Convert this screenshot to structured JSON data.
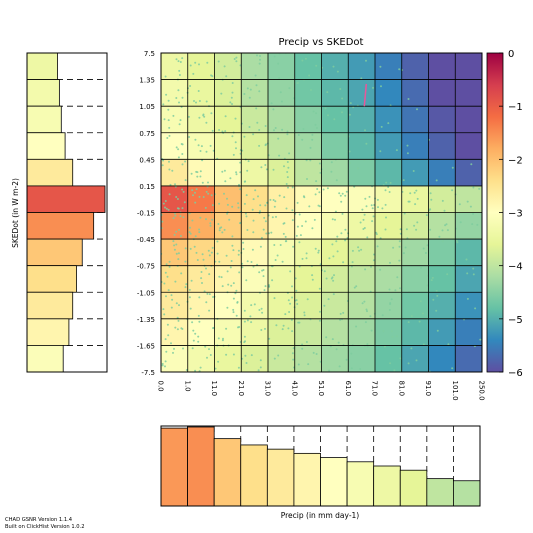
{
  "chart_data": {
    "type": "heatmap",
    "title": "Precip vs SKEDot",
    "xlabel": "Precip (in mm day-1)",
    "ylabel": "SKEDot (in W m-2)",
    "x_edges": [
      "0.0",
      "1.0",
      "11.0",
      "21.0",
      "31.0",
      "41.0",
      "51.0",
      "61.0",
      "71.0",
      "81.0",
      "91.0",
      "101.0",
      "250.0"
    ],
    "y_edges": [
      "7.5",
      "1.35",
      "1.05",
      "0.75",
      "0.45",
      "0.15",
      "-0.15",
      "-0.45",
      "-0.75",
      "-1.05",
      "-1.35",
      "-1.65",
      "-7.5"
    ],
    "colorbar": {
      "ticks": [
        "0",
        "−1",
        "−2",
        "−3",
        "−4",
        "−5",
        "−6"
      ],
      "range": [
        -6,
        0
      ]
    },
    "log_density_grid": [
      [
        -3.4,
        -3.6,
        -3.8,
        -4.2,
        -4.5,
        -4.8,
        -5.0,
        -5.2,
        -5.5,
        -5.8,
        -6.0,
        -6.0
      ],
      [
        -3.3,
        -3.5,
        -3.7,
        -4.1,
        -4.4,
        -4.7,
        -4.9,
        -5.1,
        -5.4,
        -5.7,
        -6.0,
        -6.0
      ],
      [
        -3.2,
        -3.4,
        -3.6,
        -3.9,
        -4.2,
        -4.5,
        -4.8,
        -5.0,
        -5.3,
        -5.6,
        -5.9,
        -6.0
      ],
      [
        -3.0,
        -3.2,
        -3.4,
        -3.7,
        -4.0,
        -4.3,
        -4.6,
        -4.9,
        -5.2,
        -5.5,
        -5.8,
        -6.0
      ],
      [
        -2.6,
        -2.9,
        -3.1,
        -3.4,
        -3.7,
        -4.0,
        -4.3,
        -4.6,
        -4.9,
        -5.2,
        -5.5,
        -5.8
      ],
      [
        -0.9,
        -1.3,
        -2.0,
        -2.4,
        -2.7,
        -2.9,
        -3.0,
        -3.1,
        -3.3,
        -3.5,
        -3.8,
        -4.0
      ],
      [
        -1.5,
        -1.8,
        -2.2,
        -2.5,
        -2.8,
        -3.0,
        -3.2,
        -3.4,
        -3.6,
        -3.8,
        -4.1,
        -4.4
      ],
      [
        -2.1,
        -2.3,
        -2.6,
        -2.9,
        -3.2,
        -3.4,
        -3.6,
        -3.8,
        -4.0,
        -4.3,
        -4.6,
        -4.9
      ],
      [
        -2.4,
        -2.6,
        -2.8,
        -3.1,
        -3.4,
        -3.6,
        -3.8,
        -4.0,
        -4.2,
        -4.5,
        -4.8,
        -5.1
      ],
      [
        -2.6,
        -2.8,
        -3.0,
        -3.3,
        -3.5,
        -3.7,
        -3.9,
        -4.1,
        -4.4,
        -4.7,
        -5.0,
        -5.3
      ],
      [
        -2.8,
        -3.0,
        -3.2,
        -3.4,
        -3.7,
        -3.9,
        -4.1,
        -4.3,
        -4.6,
        -4.9,
        -5.2,
        -5.5
      ],
      [
        -3.1,
        -3.3,
        -3.5,
        -3.7,
        -3.9,
        -4.1,
        -4.3,
        -4.5,
        -4.8,
        -5.1,
        -5.4,
        -5.7
      ]
    ],
    "left_histogram_values": [
      -3.4,
      -3.3,
      -3.2,
      -3.0,
      -2.6,
      -0.9,
      -1.5,
      -2.1,
      -2.4,
      -2.6,
      -2.8,
      -3.1
    ],
    "bottom_histogram_values": [
      -1.6,
      -1.5,
      -2.1,
      -2.4,
      -2.6,
      -2.8,
      -3.0,
      -3.2,
      -3.4,
      -3.6,
      -4.0,
      -4.1
    ],
    "annotation_line": {
      "x": [
        61.0,
        61.0
      ],
      "y": [
        1.05,
        1.3
      ],
      "color": "#e8579a"
    }
  },
  "footer": {
    "line1": "CHAD GSNR Version 1.1.4",
    "line2": "Built on ClickHist Version 1.0.2"
  },
  "colors": {
    "colormap_stops": [
      "#5e4fa2",
      "#3288bd",
      "#66c2a5",
      "#abdda4",
      "#e6f598",
      "#ffffbf",
      "#fee08b",
      "#fdae61",
      "#f46d43",
      "#d53e4f",
      "#9e0142"
    ],
    "scatter_color": "#7fcd9f"
  }
}
